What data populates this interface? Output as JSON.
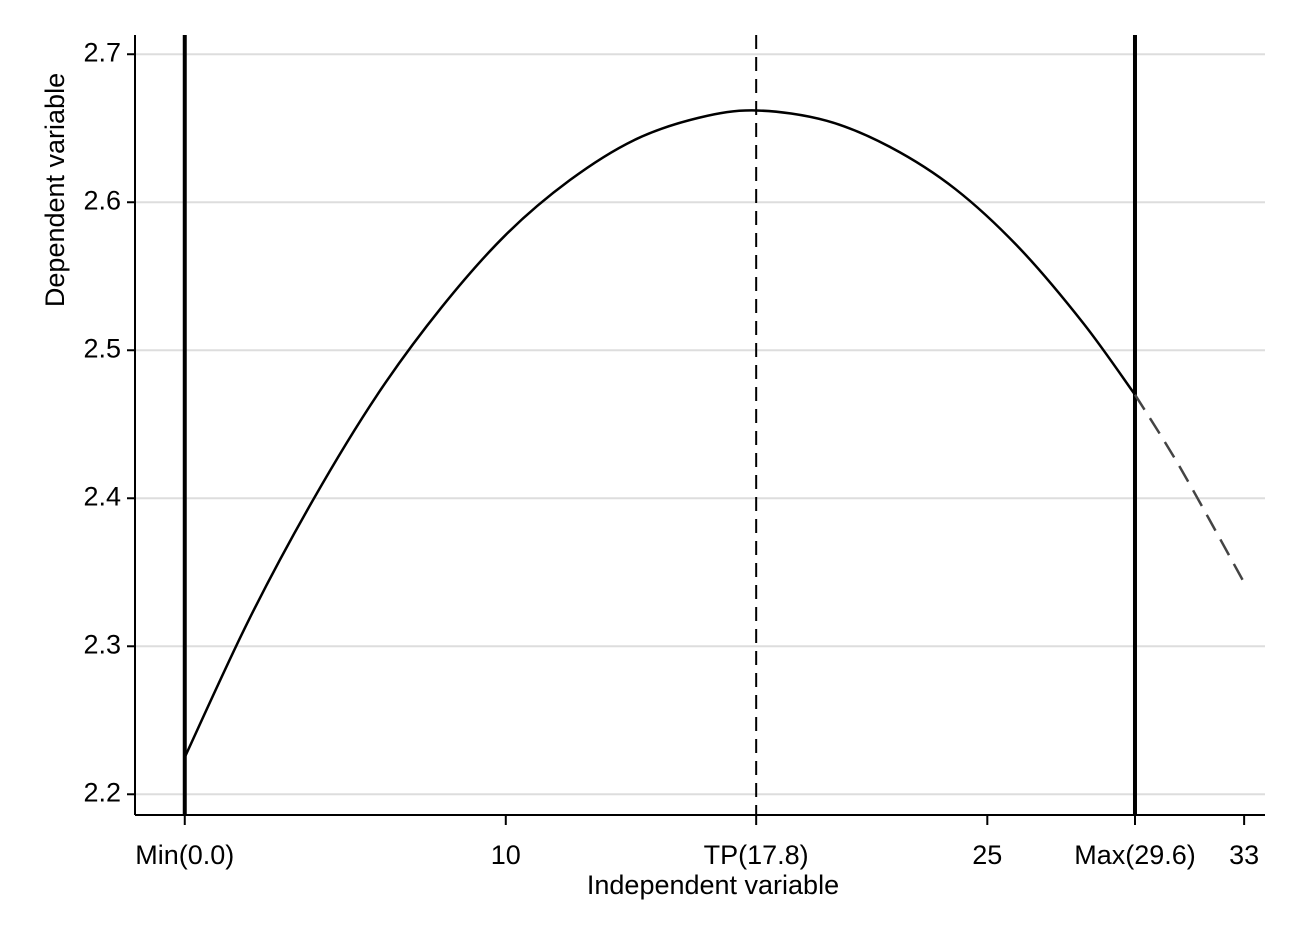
{
  "chart_data": {
    "type": "line",
    "x_label": "Independent variable",
    "y_label": "Dependent variable",
    "series": [
      {
        "style": "solid",
        "color": "#000000",
        "x": [
          0,
          2,
          4,
          6,
          8,
          10,
          12,
          14,
          16,
          17.8,
          20,
          22,
          24,
          26,
          28,
          29.6
        ],
        "values": [
          2.225,
          2.318,
          2.399,
          2.47,
          2.529,
          2.578,
          2.615,
          2.642,
          2.657,
          2.662,
          2.655,
          2.637,
          2.609,
          2.569,
          2.518,
          2.47
        ]
      },
      {
        "style": "dashed",
        "color": "#444444",
        "x": [
          29.6,
          31,
          33
        ],
        "values": [
          2.47,
          2.421,
          2.343
        ]
      }
    ],
    "vlines": [
      {
        "x": 0,
        "style": "solid"
      },
      {
        "x": 17.8,
        "style": "dashed"
      },
      {
        "x": 29.6,
        "style": "solid"
      }
    ],
    "xlim": [
      -1.55,
      33.65
    ],
    "ylim": [
      2.186,
      2.713
    ],
    "xticks": [
      {
        "value": 0,
        "label": "Min(0.0)"
      },
      10,
      {
        "value": 17.8,
        "label": "TP(17.8)"
      },
      25,
      {
        "value": 29.6,
        "label": "Max(29.6)"
      },
      33
    ],
    "yticks": [
      2.2,
      2.3,
      2.4,
      2.5,
      2.6,
      2.7
    ],
    "grid": true
  }
}
